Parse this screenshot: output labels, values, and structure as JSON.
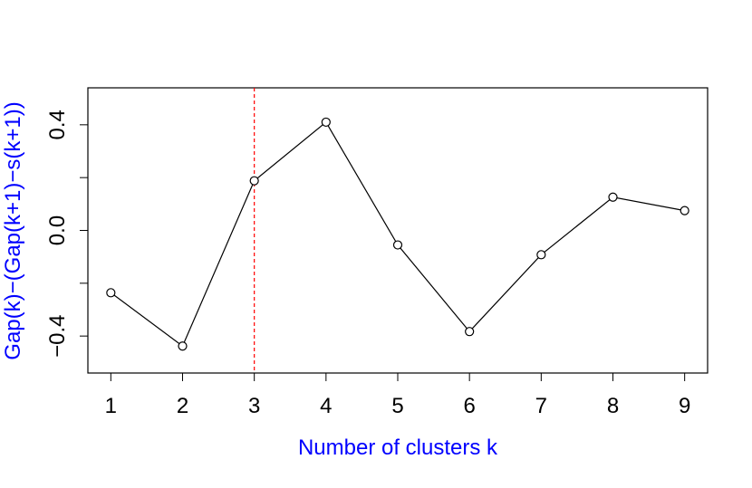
{
  "chart_data": {
    "type": "line",
    "xlabel": "Number of clusters k",
    "ylabel": "Gap(k)−(Gap(k+1)−s(k+1))",
    "label_color": "#0000ff",
    "x": [
      1,
      2,
      3,
      4,
      5,
      6,
      7,
      8,
      9
    ],
    "values": [
      -0.236,
      -0.438,
      0.188,
      0.41,
      -0.055,
      -0.383,
      -0.092,
      0.126,
      0.075
    ],
    "color": "#000000",
    "marker": "open-circle",
    "xlim": [
      0.68,
      9.32
    ],
    "ylim": [
      -0.54,
      0.54
    ],
    "xticks": [
      1,
      2,
      3,
      4,
      5,
      6,
      7,
      8,
      9
    ],
    "yticks": [
      {
        "value": -0.4,
        "label": "−0.4"
      },
      {
        "value": 0,
        "label": "0.0"
      },
      {
        "value": 0.4,
        "label": "0.4"
      }
    ],
    "yticks_minor": [
      -0.2,
      0.2
    ],
    "vline": 3,
    "vline_color": "#ff0000"
  }
}
